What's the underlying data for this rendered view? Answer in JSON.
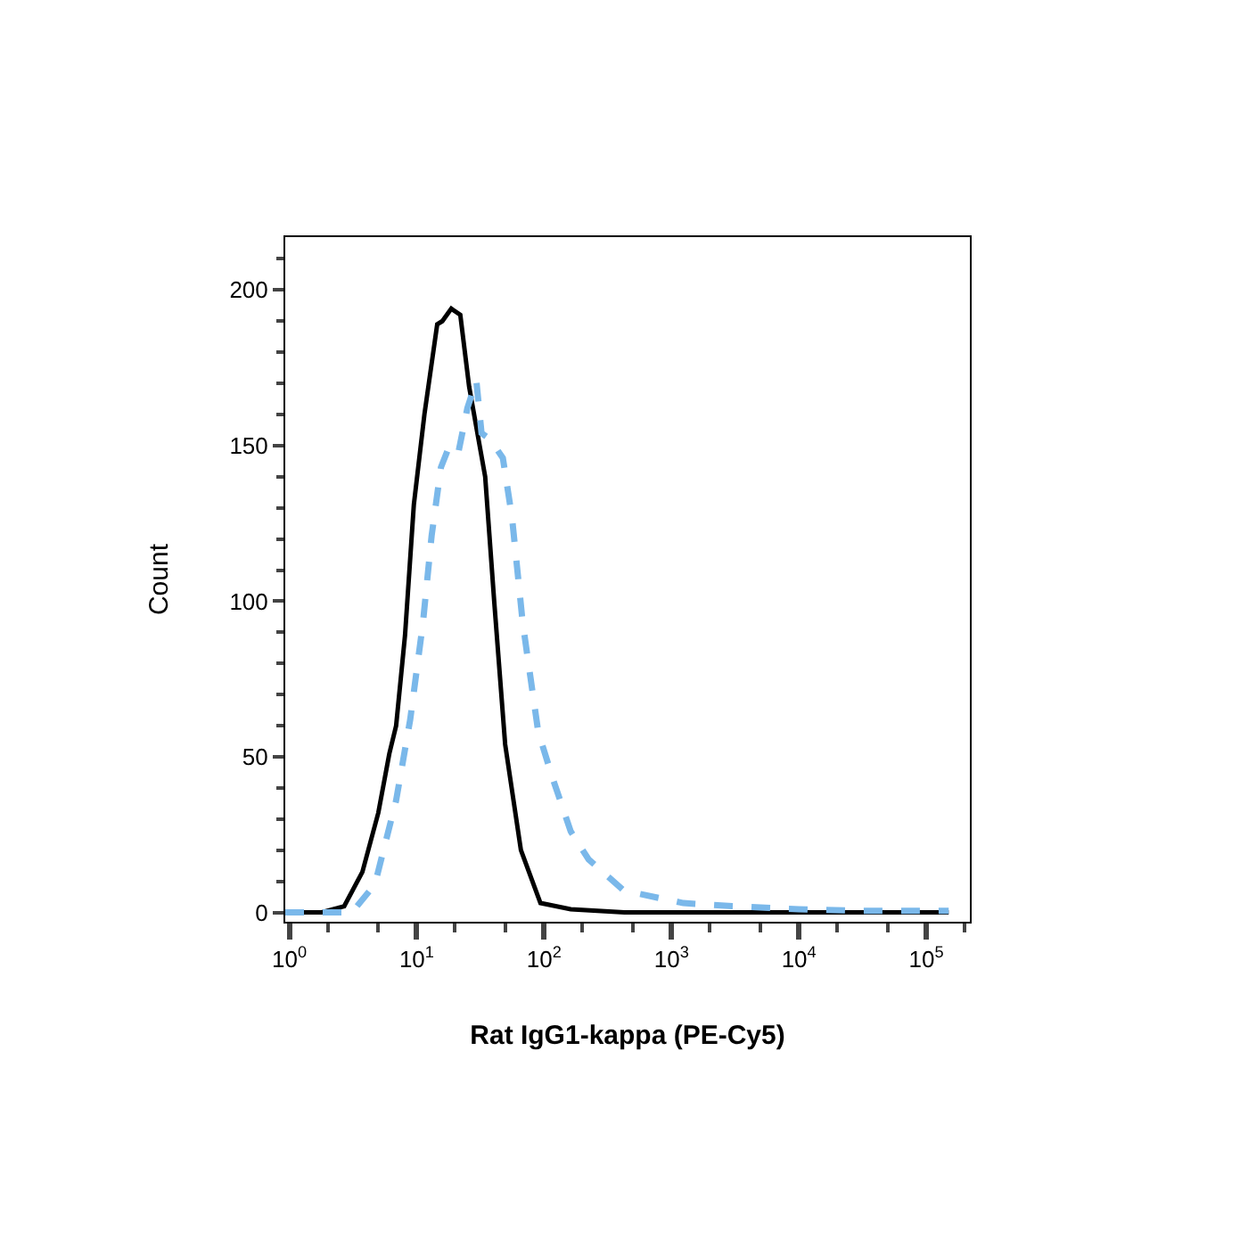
{
  "chart_data": {
    "type": "line",
    "xlabel": "Rat IgG1-kappa (PE-Cy5)",
    "ylabel": "Count",
    "log": "x",
    "xlim": [
      0.93,
      220000
    ],
    "xticks": [
      {
        "value": 1,
        "label": "10$^{0}$"
      },
      {
        "value": 10,
        "label": "10$^{1}$"
      },
      {
        "value": 100,
        "label": "10$^{2}$"
      },
      {
        "value": 1000,
        "label": "10$^{3}$"
      },
      {
        "value": 10000,
        "label": "10$^{4}$"
      },
      {
        "value": 100000,
        "label": "10$^{5}$"
      }
    ],
    "ylim": [
      -3,
      217
    ],
    "yticks": [
      0,
      50,
      100,
      150,
      200
    ],
    "series": [
      {
        "color": "#000000",
        "line_style": "solid",
        "x": [
          0.93,
          1.8,
          2.7,
          3.75,
          5.0,
          6.1,
          6.9,
          8.1,
          9.5,
          11.5,
          14.5,
          15.9,
          18.7,
          22,
          25.8,
          34.5,
          40.6,
          49.5,
          65.8,
          93.7,
          162,
          427,
          3000,
          150000
        ],
        "values": [
          0,
          0,
          2,
          13,
          32,
          51,
          60,
          89,
          131,
          160,
          189,
          190,
          194,
          192,
          169,
          140,
          100,
          54,
          20,
          3,
          1,
          0,
          0,
          0
        ]
      },
      {
        "color": "#7ab8ea",
        "line_style": "dashed",
        "x": [
          0.93,
          3.1,
          4.7,
          6.9,
          8.9,
          11.2,
          13.1,
          15.5,
          18.1,
          21.3,
          25,
          29.4,
          32.3,
          37.8,
          47.5,
          56,
          68,
          90,
          117,
          162,
          224,
          424,
          1240,
          3000,
          10000,
          30000,
          150000
        ],
        "values": [
          0,
          0,
          9,
          36,
          62,
          93,
          121,
          143,
          150,
          148,
          162,
          171,
          154,
          152,
          146,
          127,
          93,
          58,
          43,
          26,
          17,
          7,
          3,
          2,
          1,
          0.5,
          0.5
        ]
      }
    ]
  }
}
